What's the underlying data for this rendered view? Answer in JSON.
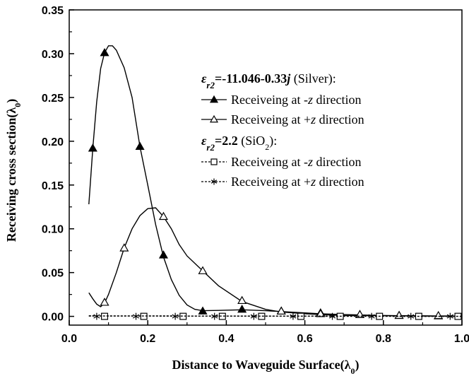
{
  "chart_data": {
    "type": "line",
    "xlabel": "Distance to Waveguide Surface(λ0)",
    "ylabel": "Receiving cross section(λ0)",
    "xlim": [
      0.0,
      1.0
    ],
    "ylim": [
      -0.01,
      0.35
    ],
    "x_ticks": [
      "0.0",
      "0.2",
      "0.4",
      "0.6",
      "0.8",
      "1.0"
    ],
    "y_ticks": [
      "0.00",
      "0.05",
      "0.10",
      "0.15",
      "0.20",
      "0.25",
      "0.30",
      "0.35"
    ],
    "legend_groups": [
      {
        "header": {
          "symbol": "ε",
          "subscript": "r2",
          "value": "=-11.046-0.33j",
          "suffix": " (Silver):"
        },
        "entries": [
          {
            "text": "Receiveing at -z direction",
            "marker": "filled-triangle",
            "dash": "solid"
          },
          {
            "text": "Receiveing at +z direction",
            "marker": "open-triangle",
            "dash": "solid"
          }
        ]
      },
      {
        "header": {
          "symbol": "ε",
          "subscript": "r2",
          "value": "=2.2",
          "suffix": " (SiO2):"
        },
        "entries": [
          {
            "text": "Receiveing at -z direction",
            "marker": "open-square",
            "dash": "dashed"
          },
          {
            "text": "Receiveing at +z direction",
            "marker": "asterisk",
            "dash": "dashed"
          }
        ]
      }
    ],
    "series": [
      {
        "marker": "filled-triangle",
        "dash": "solid",
        "curve": [
          [
            0.05,
            0.128
          ],
          [
            0.06,
            0.192
          ],
          [
            0.07,
            0.245
          ],
          [
            0.08,
            0.283
          ],
          [
            0.09,
            0.301
          ],
          [
            0.1,
            0.309
          ],
          [
            0.11,
            0.309
          ],
          [
            0.12,
            0.304
          ],
          [
            0.14,
            0.284
          ],
          [
            0.16,
            0.25
          ],
          [
            0.18,
            0.194
          ],
          [
            0.2,
            0.15
          ],
          [
            0.22,
            0.105
          ],
          [
            0.24,
            0.068
          ],
          [
            0.26,
            0.042
          ],
          [
            0.28,
            0.024
          ],
          [
            0.3,
            0.013
          ],
          [
            0.32,
            0.008
          ],
          [
            0.34,
            0.0065
          ],
          [
            0.38,
            0.0068
          ],
          [
            0.44,
            0.0075
          ],
          [
            0.5,
            0.0065
          ],
          [
            0.54,
            0.0055
          ],
          [
            0.6,
            0.004
          ],
          [
            0.64,
            0.003
          ],
          [
            0.7,
            0.002
          ],
          [
            0.8,
            0.001
          ],
          [
            0.9,
            0.0005
          ],
          [
            1.0,
            0.0
          ]
        ],
        "markers": [
          [
            0.06,
            0.192
          ],
          [
            0.09,
            0.301
          ],
          [
            0.18,
            0.194
          ],
          [
            0.24,
            0.07
          ],
          [
            0.34,
            0.006
          ],
          [
            0.44,
            0.008
          ],
          [
            0.54,
            0.006
          ],
          [
            0.64,
            0.004
          ],
          [
            0.74,
            0.002
          ],
          [
            0.84,
            0.001
          ],
          [
            0.94,
            0.0005
          ]
        ]
      },
      {
        "marker": "open-triangle",
        "dash": "solid",
        "curve": [
          [
            0.05,
            0.027
          ],
          [
            0.06,
            0.02
          ],
          [
            0.07,
            0.014
          ],
          [
            0.08,
            0.011
          ],
          [
            0.09,
            0.015
          ],
          [
            0.1,
            0.025
          ],
          [
            0.12,
            0.05
          ],
          [
            0.14,
            0.078
          ],
          [
            0.16,
            0.1
          ],
          [
            0.18,
            0.115
          ],
          [
            0.2,
            0.123
          ],
          [
            0.22,
            0.124
          ],
          [
            0.24,
            0.114
          ],
          [
            0.26,
            0.1
          ],
          [
            0.28,
            0.082
          ],
          [
            0.3,
            0.069
          ],
          [
            0.34,
            0.052
          ],
          [
            0.38,
            0.035
          ],
          [
            0.44,
            0.017
          ],
          [
            0.5,
            0.008
          ],
          [
            0.54,
            0.005
          ],
          [
            0.6,
            0.003
          ],
          [
            0.64,
            0.002
          ],
          [
            0.7,
            0.001
          ],
          [
            0.8,
            0.0008
          ],
          [
            0.9,
            0.0005
          ],
          [
            1.0,
            0.0003
          ]
        ],
        "markers": [
          [
            0.09,
            0.016
          ],
          [
            0.14,
            0.078
          ],
          [
            0.24,
            0.114
          ],
          [
            0.34,
            0.052
          ],
          [
            0.44,
            0.018
          ],
          [
            0.54,
            0.006
          ],
          [
            0.64,
            0.003
          ],
          [
            0.74,
            0.002
          ],
          [
            0.84,
            0.001
          ],
          [
            0.94,
            0.0008
          ]
        ]
      },
      {
        "marker": "open-square",
        "dash": "dashed",
        "curve": [
          [
            0.05,
            0.0005
          ],
          [
            1.0,
            0.0
          ]
        ],
        "markers": [
          [
            0.09,
            0.0
          ],
          [
            0.19,
            0.0
          ],
          [
            0.29,
            0.0
          ],
          [
            0.39,
            0.0
          ],
          [
            0.49,
            0.0
          ],
          [
            0.59,
            0.0
          ],
          [
            0.69,
            0.0
          ],
          [
            0.79,
            0.0
          ],
          [
            0.89,
            0.0
          ],
          [
            0.99,
            0.0
          ]
        ]
      },
      {
        "marker": "asterisk",
        "dash": "dashed",
        "curve": [
          [
            0.05,
            0.0005
          ],
          [
            1.0,
            0.0
          ]
        ],
        "markers": [
          [
            0.07,
            0.0
          ],
          [
            0.17,
            0.0
          ],
          [
            0.27,
            0.0
          ],
          [
            0.37,
            0.0
          ],
          [
            0.47,
            0.0
          ],
          [
            0.57,
            0.0
          ],
          [
            0.67,
            0.0
          ],
          [
            0.77,
            0.0
          ],
          [
            0.87,
            0.0
          ],
          [
            0.97,
            0.0
          ]
        ]
      }
    ]
  }
}
